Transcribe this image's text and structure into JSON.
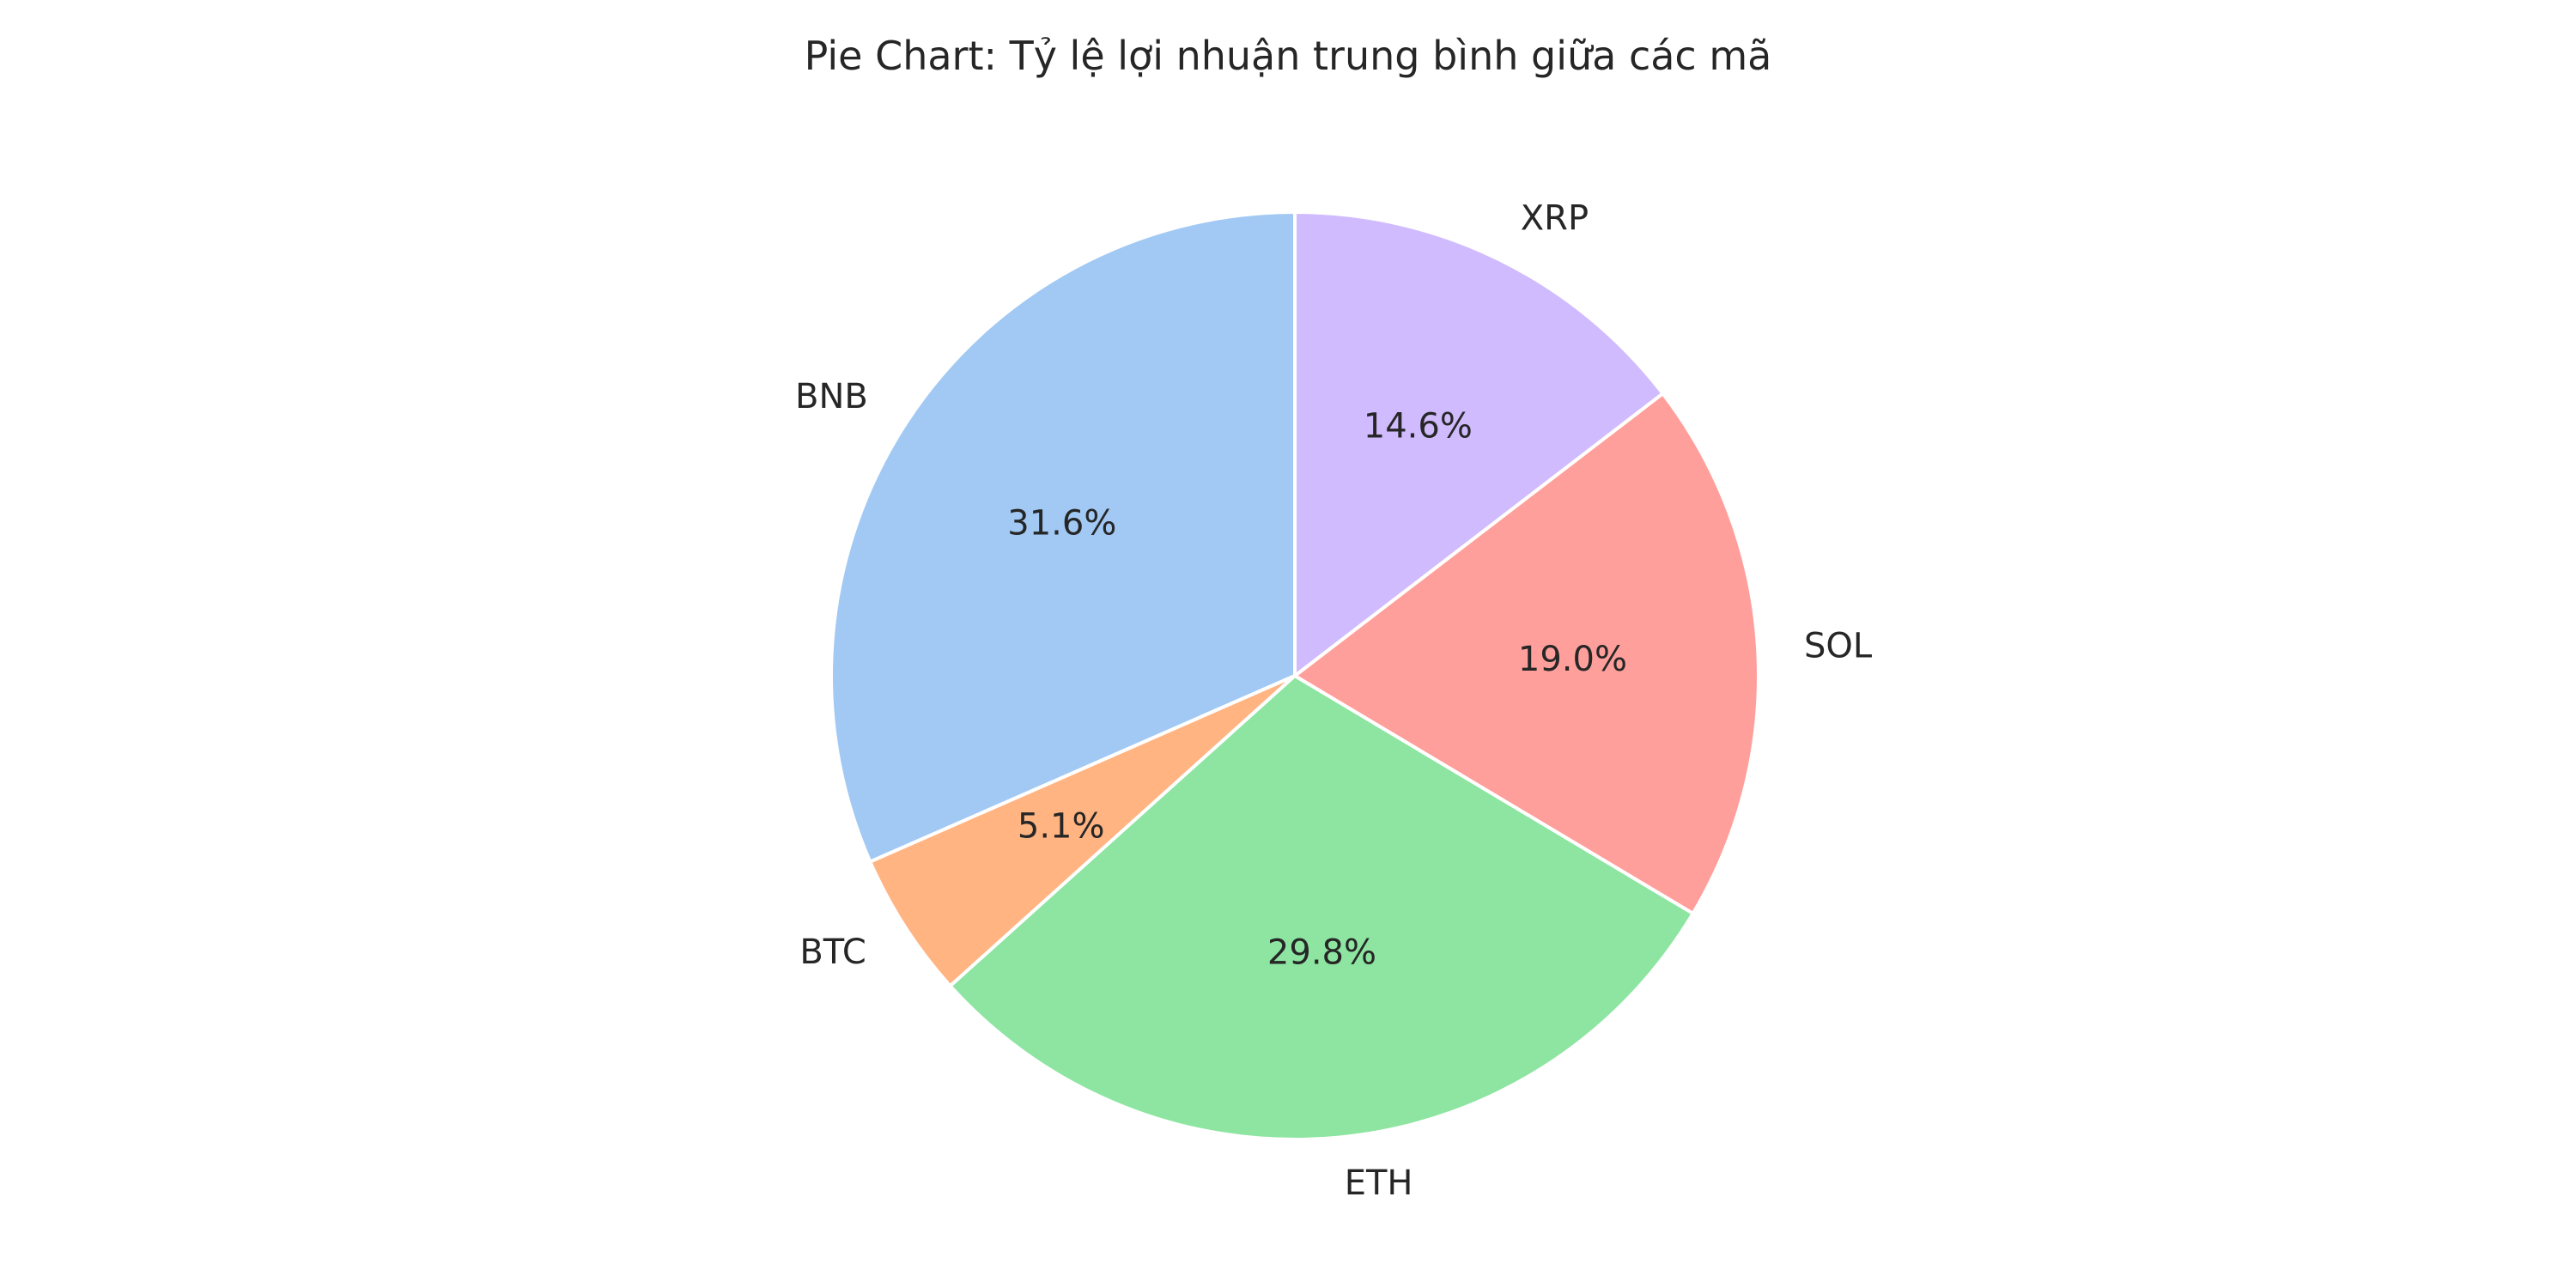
{
  "chart_data": {
    "type": "pie",
    "title": "Pie Chart: Tỷ lệ lợi nhuận trung bình giữa các mã",
    "start_angle_deg": 90,
    "direction": "counterclockwise",
    "slices": [
      {
        "label": "BNB",
        "value": 31.6,
        "pct_label": "31.6%",
        "color": "#a1c9f4"
      },
      {
        "label": "BTC",
        "value": 5.1,
        "pct_label": "5.1%",
        "color": "#ffb482"
      },
      {
        "label": "ETH",
        "value": 29.8,
        "pct_label": "29.8%",
        "color": "#8de5a1"
      },
      {
        "label": "SOL",
        "value": 19.0,
        "pct_label": "19.0%",
        "color": "#ff9f9b"
      },
      {
        "label": "XRP",
        "value": 14.6,
        "pct_label": "14.6%",
        "color": "#d0bbff"
      }
    ]
  }
}
